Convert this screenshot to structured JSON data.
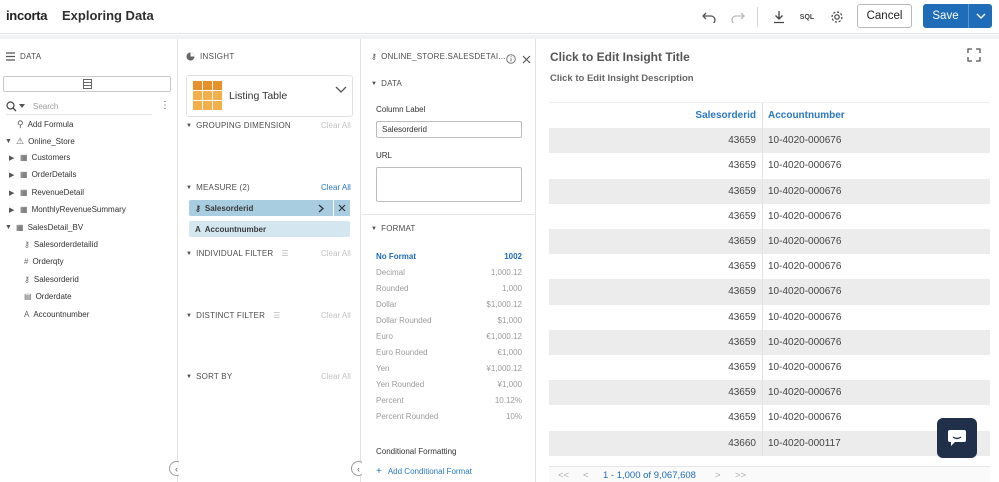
{
  "header": {
    "logo": "incorta",
    "title": "Exploring Data",
    "cancel_label": "Cancel",
    "save_label": "Save",
    "sql_label": "SQL"
  },
  "data_panel": {
    "title": "DATA",
    "search_placeholder": "Search",
    "add_formula": "Add Formula",
    "schema": "Online_Store",
    "tables": [
      "Customers",
      "OrderDetails",
      "RevenueDetail",
      "MonthlyRevenueSummary"
    ],
    "bv": "SalesDetail_BV",
    "bv_columns": [
      {
        "name": "Salesorderdetailid",
        "icon": "key-icon"
      },
      {
        "name": "Orderqty",
        "icon": "hash-icon"
      },
      {
        "name": "Salesorderid",
        "icon": "key-icon"
      },
      {
        "name": "Orderdate",
        "icon": "calendar-icon"
      },
      {
        "name": "Accountnumber",
        "icon": "text-icon"
      }
    ]
  },
  "insight_panel": {
    "title": "INSIGHT",
    "viz_label": "Listing Table",
    "grouping": "GROUPING DIMENSION",
    "measure": "MEASURE (2)",
    "measure_items": [
      "Salesorderid",
      "Accountnumber"
    ],
    "individual_filter": "INDIVIDUAL FILTER",
    "distinct_filter": "DISTINCT FILTER",
    "sort_by": "SORT BY",
    "clear_all": "Clear All"
  },
  "field_panel": {
    "title": "ONLINE_STORE.SALESDETAI...",
    "data_section": "DATA",
    "column_label_caption": "Column Label",
    "column_label_value": "Salesorderid",
    "url_caption": "URL",
    "format_section": "FORMAT",
    "formats": [
      {
        "name": "No Format",
        "example": "1002",
        "active": true
      },
      {
        "name": "Decimal",
        "example": "1,000.12"
      },
      {
        "name": "Rounded",
        "example": "1,000"
      },
      {
        "name": "Dollar",
        "example": "$1,000.12"
      },
      {
        "name": "Dollar Rounded",
        "example": "$1,000"
      },
      {
        "name": "Euro",
        "example": "€1,000.12"
      },
      {
        "name": "Euro Rounded",
        "example": "€1,000"
      },
      {
        "name": "Yen",
        "example": "¥1,000.12"
      },
      {
        "name": "Yen Rounded",
        "example": "¥1,000"
      },
      {
        "name": "Percent",
        "example": "10.12%"
      },
      {
        "name": "Percent Rounded",
        "example": "10%"
      }
    ],
    "conditional_formatting": "Conditional Formatting",
    "add_conditional": "Add Conditional Format"
  },
  "main": {
    "insight_title": "Click to Edit Insight Title",
    "insight_desc": "Click to Edit Insight Description",
    "columns": [
      "Salesorderid",
      "Accountnumber"
    ],
    "rows": [
      [
        "43659",
        "10-4020-000676"
      ],
      [
        "43659",
        "10-4020-000676"
      ],
      [
        "43659",
        "10-4020-000676"
      ],
      [
        "43659",
        "10-4020-000676"
      ],
      [
        "43659",
        "10-4020-000676"
      ],
      [
        "43659",
        "10-4020-000676"
      ],
      [
        "43659",
        "10-4020-000676"
      ],
      [
        "43659",
        "10-4020-000676"
      ],
      [
        "43659",
        "10-4020-000676"
      ],
      [
        "43659",
        "10-4020-000676"
      ],
      [
        "43659",
        "10-4020-000676"
      ],
      [
        "43659",
        "10-4020-000676"
      ],
      [
        "43660",
        "10-4020-000117"
      ]
    ],
    "pager_range": "1 - 1,000 of 9,067,608",
    "pager_first": "<<",
    "pager_prev": "<",
    "pager_next": ">",
    "pager_last": ">>"
  }
}
